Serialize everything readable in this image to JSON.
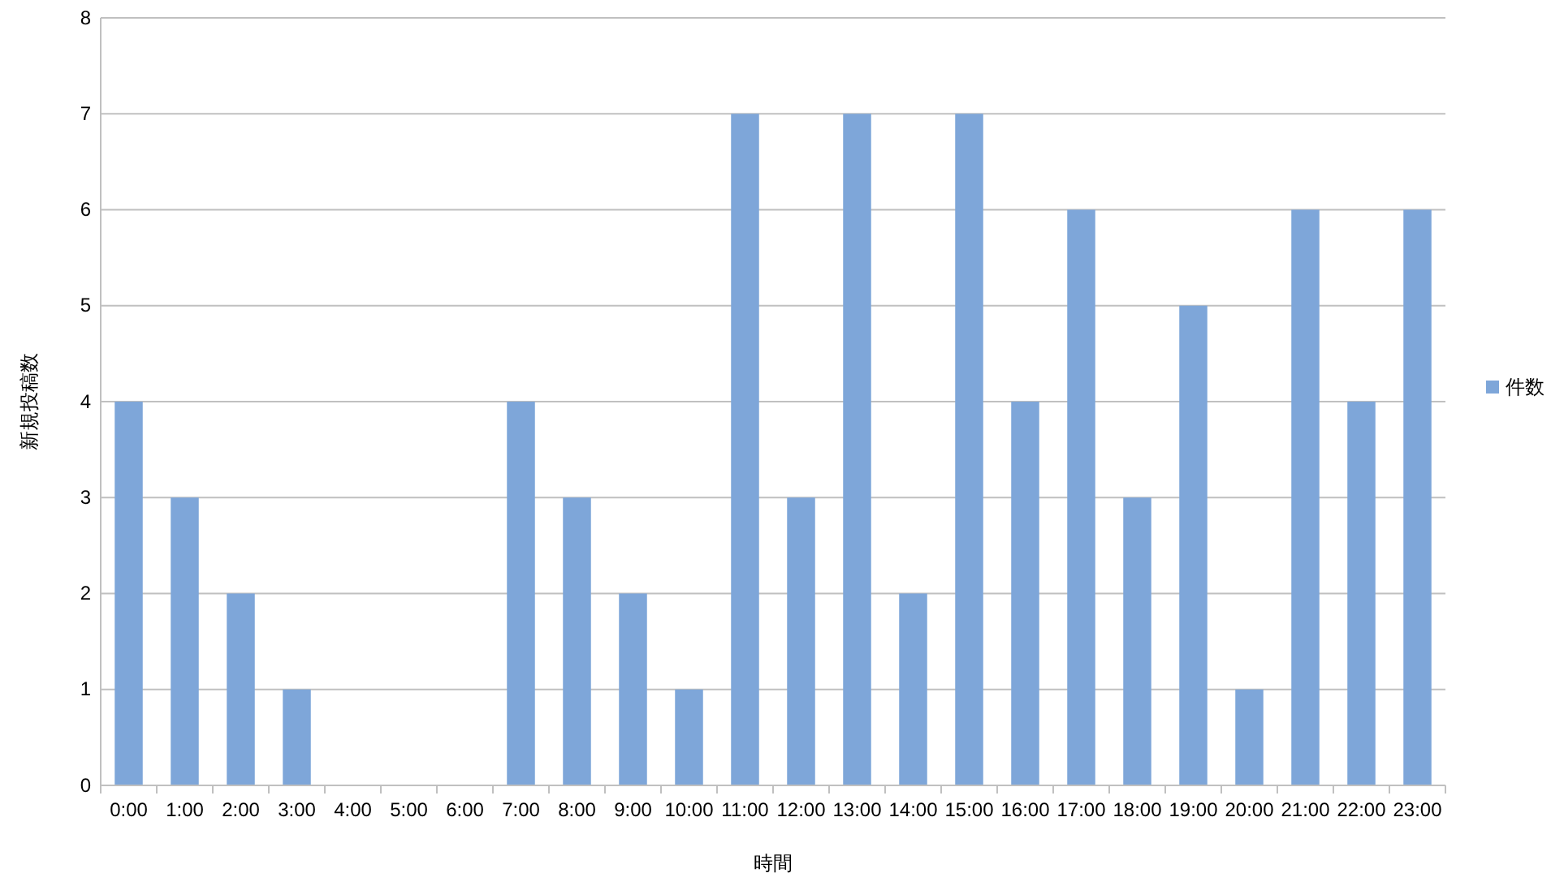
{
  "chart_data": {
    "type": "bar",
    "xlabel": "時間",
    "ylabel": "新規投稿数",
    "categories": [
      "0:00",
      "1:00",
      "2:00",
      "3:00",
      "4:00",
      "5:00",
      "6:00",
      "7:00",
      "8:00",
      "9:00",
      "10:00",
      "11:00",
      "12:00",
      "13:00",
      "14:00",
      "15:00",
      "16:00",
      "17:00",
      "18:00",
      "19:00",
      "20:00",
      "21:00",
      "22:00",
      "23:00"
    ],
    "series": [
      {
        "name": "件数",
        "color": "#7ea6d9",
        "values": [
          4,
          3,
          2,
          1,
          0,
          0,
          0,
          4,
          3,
          2,
          1,
          7,
          3,
          7,
          2,
          7,
          4,
          6,
          3,
          5,
          1,
          6,
          4,
          6
        ]
      }
    ],
    "ylim": [
      0,
      8
    ],
    "yticks": [
      0,
      1,
      2,
      3,
      4,
      5,
      6,
      7,
      8
    ],
    "grid": "y",
    "legend": "right"
  }
}
